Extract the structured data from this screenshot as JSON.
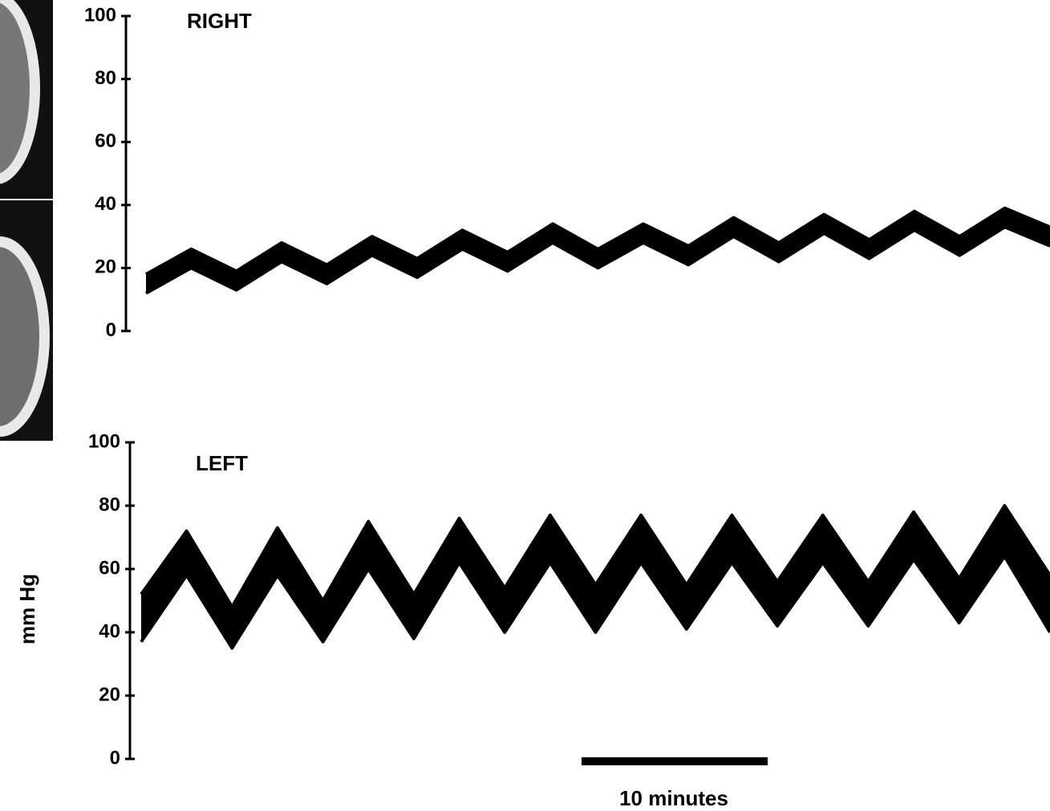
{
  "chart_data": [
    {
      "type": "line",
      "title": "RIGHT",
      "ylim": [
        0,
        100
      ],
      "yticks": [
        0,
        20,
        40,
        60,
        80,
        100
      ],
      "series": [
        {
          "color": "#000000",
          "values": [
            18,
            26,
            19,
            28,
            21,
            30,
            23,
            32,
            25,
            34,
            26,
            34,
            27,
            36,
            28,
            37,
            29,
            38,
            30,
            39,
            33
          ]
        },
        {
          "color": "#000000",
          "values": [
            12,
            20,
            13,
            22,
            15,
            24,
            17,
            26,
            19,
            28,
            20,
            28,
            21,
            30,
            22,
            31,
            23,
            32,
            24,
            33,
            27
          ]
        }
      ]
    },
    {
      "type": "line",
      "title": "LEFT",
      "ylabel": "mm Hg",
      "annotation": "10 minutes",
      "ylim": [
        0,
        100
      ],
      "yticks": [
        0,
        20,
        40,
        60,
        80,
        100
      ],
      "series": [
        {
          "color": "#000000",
          "values": [
            52,
            72,
            48,
            73,
            50,
            75,
            52,
            76,
            54,
            77,
            55,
            77,
            55,
            77,
            56,
            77,
            56,
            78,
            57,
            80,
            58
          ]
        },
        {
          "color": "#000000",
          "values": [
            37,
            58,
            35,
            58,
            37,
            60,
            38,
            62,
            40,
            62,
            40,
            62,
            41,
            62,
            42,
            62,
            42,
            63,
            43,
            64,
            40
          ]
        }
      ]
    }
  ]
}
